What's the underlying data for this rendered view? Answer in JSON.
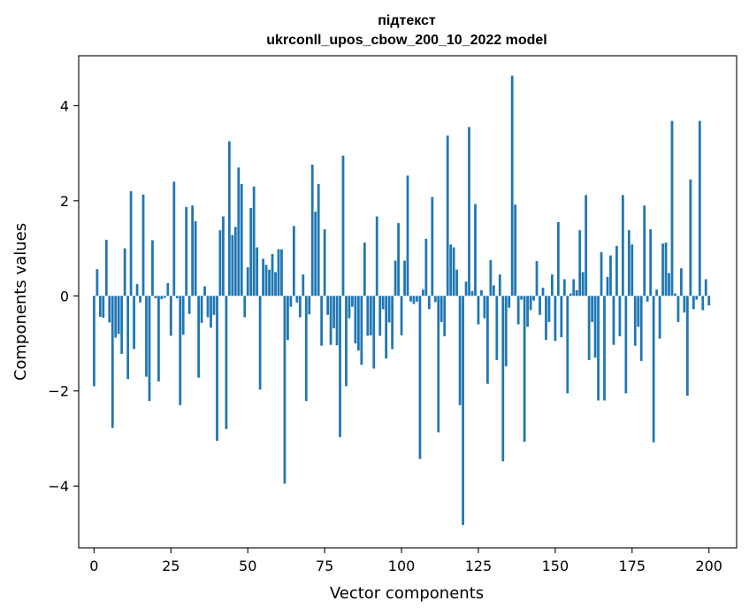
{
  "chart_data": {
    "type": "bar",
    "title": "підтекст",
    "subtitle": "ukrconll_upos_cbow_200_10_2022 model",
    "xlabel": "Vector components",
    "ylabel": "Components values",
    "xlim": [
      -5,
      209
    ],
    "ylim": [
      -5.3,
      5.05
    ],
    "x_ticks": [
      0,
      25,
      50,
      75,
      100,
      125,
      150,
      175,
      200
    ],
    "y_ticks": [
      -4,
      -2,
      0,
      2,
      4
    ],
    "y_tick_labels": [
      "−4",
      "−2",
      "0",
      "2",
      "4"
    ],
    "bar_color": "#1f77b4",
    "values": [
      -1.9,
      0.56,
      -0.44,
      -0.46,
      1.18,
      -0.56,
      -2.78,
      -0.88,
      -0.8,
      -1.22,
      1.0,
      -1.75,
      2.2,
      -1.12,
      0.25,
      -0.14,
      2.13,
      -1.7,
      -2.21,
      1.17,
      -0.05,
      -1.8,
      -0.07,
      -0.04,
      0.27,
      -0.84,
      2.4,
      -0.05,
      -2.3,
      -0.82,
      1.87,
      -0.38,
      1.9,
      1.57,
      -1.72,
      -0.57,
      0.2,
      -0.45,
      -0.67,
      -0.4,
      -3.05,
      1.38,
      1.67,
      -2.8,
      3.25,
      1.28,
      1.45,
      2.7,
      2.35,
      -0.45,
      0.6,
      1.85,
      2.3,
      1.02,
      -1.97,
      0.78,
      0.65,
      0.55,
      0.88,
      0.5,
      0.98,
      0.98,
      -3.95,
      -0.93,
      -0.23,
      1.47,
      -0.14,
      -0.45,
      0.45,
      -2.21,
      -0.39,
      2.76,
      1.77,
      2.35,
      -1.05,
      1.4,
      -0.4,
      -1.03,
      -0.68,
      -1.04,
      -2.97,
      2.95,
      -1.9,
      -0.47,
      -0.23,
      -1.0,
      -1.15,
      -1.45,
      1.12,
      -0.84,
      -0.83,
      -1.53,
      1.67,
      -0.84,
      -0.28,
      -1.32,
      -0.56,
      -1.12,
      0.74,
      1.53,
      -0.83,
      0.74,
      2.53,
      -0.12,
      -0.17,
      -0.12,
      -3.43,
      0.13,
      1.2,
      -0.28,
      2.08,
      -0.13,
      -2.87,
      -0.55,
      -0.85,
      3.37,
      1.08,
      1.02,
      0.55,
      -2.3,
      -4.82,
      0.3,
      3.55,
      0.1,
      1.93,
      -0.6,
      0.12,
      -0.47,
      -1.85,
      0.75,
      0.22,
      -1.35,
      0.45,
      -3.48,
      -1.48,
      -0.25,
      4.63,
      1.92,
      -0.6,
      -0.08,
      -3.07,
      -0.65,
      -0.3,
      -0.1,
      0.73,
      -0.4,
      0.17,
      -0.93,
      -0.55,
      0.45,
      -0.95,
      1.55,
      -0.87,
      0.35,
      -2.05,
      0.05,
      0.35,
      0.12,
      1.38,
      0.5,
      2.12,
      -1.35,
      -0.55,
      -1.3,
      -2.2,
      0.92,
      -2.2,
      0.4,
      0.85,
      -1.03,
      1.05,
      -0.85,
      2.12,
      -2.05,
      1.38,
      1.08,
      -1.05,
      -0.65,
      -1.37,
      1.9,
      -0.12,
      1.4,
      -3.08,
      0.13,
      -0.9,
      1.1,
      1.12,
      0.48,
      3.68,
      0.05,
      -0.55,
      0.58,
      -0.35,
      -2.1,
      2.45,
      -0.28,
      -0.08,
      3.68,
      -0.3,
      0.35,
      -0.2
    ]
  }
}
